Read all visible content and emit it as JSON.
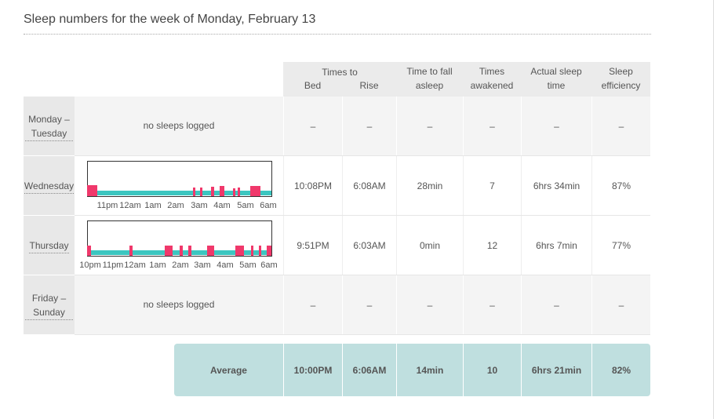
{
  "title": "Sleep numbers for the week of Monday, February 13",
  "table": {
    "header": {
      "group": "Times to",
      "columns": [
        "Bed",
        "Rise",
        "Time to fall asleep",
        "Times awakened",
        "Actual sleep time",
        "Sleep efficiency"
      ]
    },
    "rows": [
      {
        "label": "Monday – Tuesday",
        "note": "no sleeps logged",
        "cells": [
          "–",
          "–",
          "–",
          "–",
          "–",
          "–"
        ]
      },
      {
        "label": "Wednesday",
        "axis": [
          "11pm",
          "12am",
          "1am",
          "2am",
          "3am",
          "4am",
          "5am",
          "6am"
        ],
        "cells": [
          "10:08PM",
          "6:08AM",
          "28min",
          "7",
          "6hrs 34min",
          "87%"
        ]
      },
      {
        "label": "Thursday",
        "axis": [
          "10pm",
          "11pm",
          "12am",
          "1am",
          "2am",
          "3am",
          "4am",
          "5am",
          "6am"
        ],
        "cells": [
          "9:51PM",
          "6:03AM",
          "0min",
          "12",
          "6hrs 7min",
          "77%"
        ]
      },
      {
        "label": "Friday – Sunday",
        "note": "no sleeps logged",
        "cells": [
          "–",
          "–",
          "–",
          "–",
          "–",
          "–"
        ]
      }
    ],
    "average": {
      "label": "Average",
      "cells": [
        "10:00PM",
        "6:06AM",
        "14min",
        "10",
        "6hrs 21min",
        "82%"
      ]
    }
  }
}
